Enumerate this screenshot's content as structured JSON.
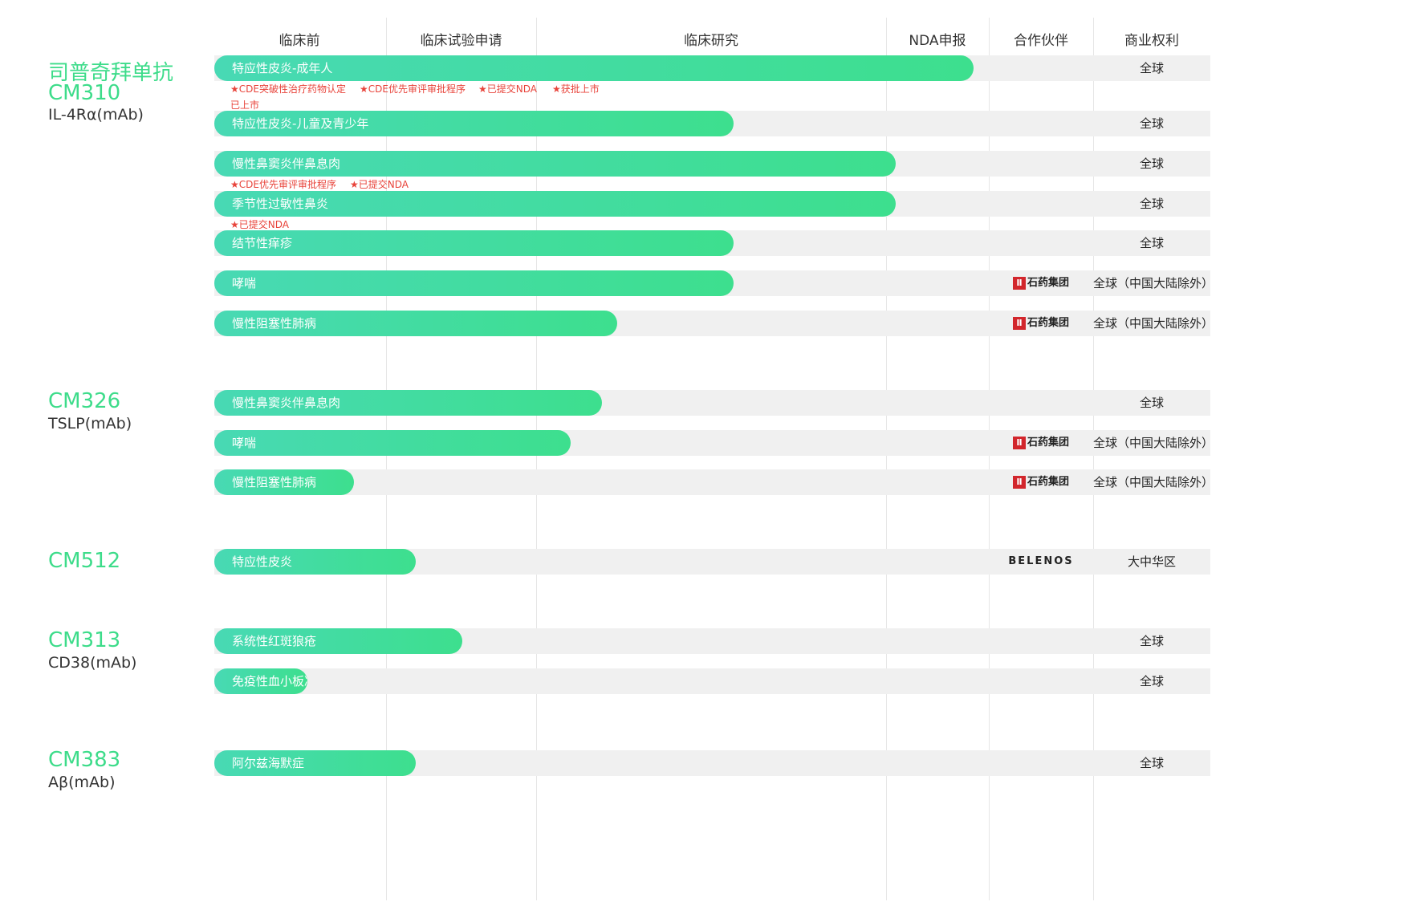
{
  "chart_data": {
    "type": "table",
    "stages": [
      "临床前",
      "临床试验申请",
      "临床研究",
      "NDA申报",
      "合作伙伴",
      "商业权利"
    ],
    "drugs": [
      {
        "name": "司普奇拜单抗",
        "code": "CM310",
        "target": "IL-4Rα(mAb)",
        "programs": [
          {
            "indication": "特应性皮炎-成年人",
            "progress": 0.98,
            "partner": "",
            "rights": "全球",
            "notes": [
              "★CDE突破性治疗药物认定",
              "★CDE优先审评审批程序",
              "★已提交NDA",
              "★获批上市",
              "已上市"
            ]
          },
          {
            "indication": "特应性皮炎-儿童及青少年",
            "progress": 0.67,
            "partner": "",
            "rights": "全球",
            "notes": []
          },
          {
            "indication": "慢性鼻窦炎伴鼻息肉",
            "progress": 0.88,
            "partner": "",
            "rights": "全球",
            "notes": [
              "★CDE优先审评审批程序",
              "★已提交NDA"
            ]
          },
          {
            "indication": "季节性过敏性鼻炎",
            "progress": 0.88,
            "partner": "",
            "rights": "全球",
            "notes": [
              "★已提交NDA"
            ]
          },
          {
            "indication": "结节性痒疹",
            "progress": 0.67,
            "partner": "",
            "rights": "全球",
            "notes": []
          },
          {
            "indication": "哮喘",
            "progress": 0.67,
            "partner": "石药集团",
            "rights": "全球（中国大陆除外）",
            "notes": []
          },
          {
            "indication": "慢性阻塞性肺病",
            "progress": 0.52,
            "partner": "石药集团",
            "rights": "全球（中国大陆除外）",
            "notes": []
          }
        ]
      },
      {
        "name": "",
        "code": "CM326",
        "target": "TSLP(mAb)",
        "programs": [
          {
            "indication": "慢性鼻窦炎伴鼻息肉",
            "progress": 0.5,
            "partner": "",
            "rights": "全球",
            "notes": []
          },
          {
            "indication": "哮喘",
            "progress": 0.46,
            "partner": "石药集团",
            "rights": "全球（中国大陆除外）",
            "notes": []
          },
          {
            "indication": "慢性阻塞性肺病",
            "progress": 0.18,
            "partner": "石药集团",
            "rights": "全球（中国大陆除外）",
            "notes": []
          }
        ]
      },
      {
        "name": "",
        "code": "CM512",
        "target": "",
        "programs": [
          {
            "indication": "特应性皮炎",
            "progress": 0.26,
            "partner": "BELENOS",
            "rights": "大中华区",
            "notes": []
          }
        ]
      },
      {
        "name": "",
        "code": "CM313",
        "target": "CD38(mAb)",
        "programs": [
          {
            "indication": "系统性红斑狼疮",
            "progress": 0.32,
            "partner": "",
            "rights": "全球",
            "notes": []
          },
          {
            "indication": "免疫性血小板减少症",
            "progress": 0.12,
            "partner": "",
            "rights": "全球",
            "notes": []
          }
        ]
      },
      {
        "name": "",
        "code": "CM383",
        "target": "Aβ(mAb)",
        "programs": [
          {
            "indication": "阿尔兹海默症",
            "progress": 0.26,
            "partner": "",
            "rights": "全球",
            "notes": []
          }
        ]
      }
    ]
  },
  "colors": {
    "bar_start": "#48d9b4",
    "bar_end": "#3ddf8e",
    "drug_name": "#3ddc8a",
    "note_red": "#e8433a",
    "track": "#f0f0f0",
    "partner_logo_red": "#d2262c"
  },
  "partner_icons": {
    "石药集团": "cspc-logo-icon",
    "BELENOS": "belenos-logo-icon"
  }
}
